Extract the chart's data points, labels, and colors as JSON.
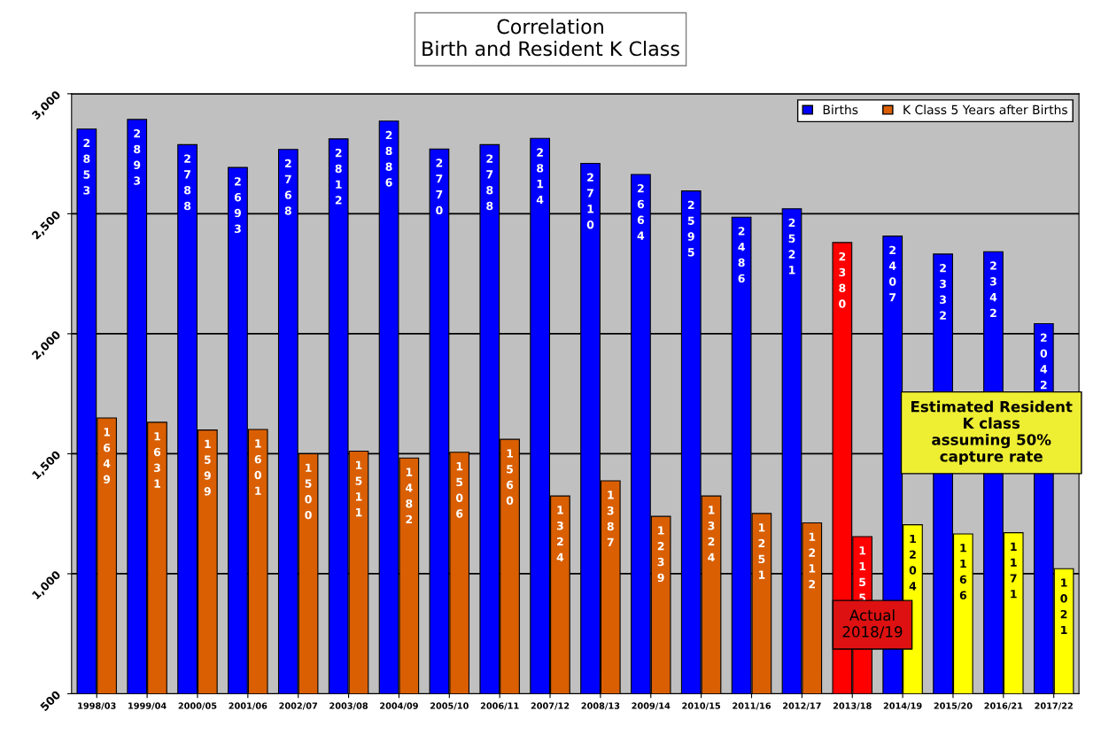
{
  "chart_data": {
    "type": "bar",
    "title": "Correlation\nBirth and Resident K Class",
    "categories": [
      "1998/03",
      "1999/04",
      "2000/05",
      "2001/06",
      "2002/07",
      "2003/08",
      "2004/09",
      "2005/10",
      "2006/11",
      "2007/12",
      "2008/13",
      "2009/14",
      "2010/15",
      "2011/16",
      "2012/17",
      "2013/18",
      "2014/19",
      "2015/20",
      "2016/21",
      "2017/22"
    ],
    "series": [
      {
        "name": "Births",
        "color": "#0000ff",
        "colors": [
          "#0000ff",
          "#0000ff",
          "#0000ff",
          "#0000ff",
          "#0000ff",
          "#0000ff",
          "#0000ff",
          "#0000ff",
          "#0000ff",
          "#0000ff",
          "#0000ff",
          "#0000ff",
          "#0000ff",
          "#0000ff",
          "#0000ff",
          "#ff0000",
          "#0000ff",
          "#0000ff",
          "#0000ff",
          "#0000ff"
        ],
        "values": [
          2853,
          2893,
          2788,
          2693,
          2768,
          2812,
          2886,
          2770,
          2788,
          2814,
          2710,
          2664,
          2595,
          2486,
          2521,
          2380,
          2407,
          2332,
          2342,
          2042
        ]
      },
      {
        "name": "K Class 5 Years after Births",
        "color": "#d95f02",
        "colors": [
          "#d95f02",
          "#d95f02",
          "#d95f02",
          "#d95f02",
          "#d95f02",
          "#d95f02",
          "#d95f02",
          "#d95f02",
          "#d95f02",
          "#d95f02",
          "#d95f02",
          "#d95f02",
          "#d95f02",
          "#d95f02",
          "#d95f02",
          "#ff0000",
          "#ffff00",
          "#ffff00",
          "#ffff00",
          "#ffff00"
        ],
        "values": [
          1649,
          1631,
          1599,
          1601,
          1500,
          1511,
          1482,
          1506,
          1560,
          1324,
          1387,
          1239,
          1324,
          1251,
          1212,
          1155,
          1204,
          1166,
          1171,
          1021
        ]
      }
    ],
    "ylim": [
      500,
      3000
    ],
    "yticks": [
      500,
      {
        "value": 1000,
        "label": "1,000"
      },
      {
        "value": 1500,
        "label": "1,500"
      },
      {
        "value": 2000,
        "label": "2,000"
      },
      {
        "value": 2500,
        "label": "2,500"
      },
      {
        "value": 3000,
        "label": "3,000"
      }
    ],
    "grid": "y",
    "legend": "top right",
    "data_labels": true,
    "annotations": [
      "Estimated Resident\nK class\nassuming 50%\ncapture rate",
      "Actual\n2018/19"
    ]
  }
}
